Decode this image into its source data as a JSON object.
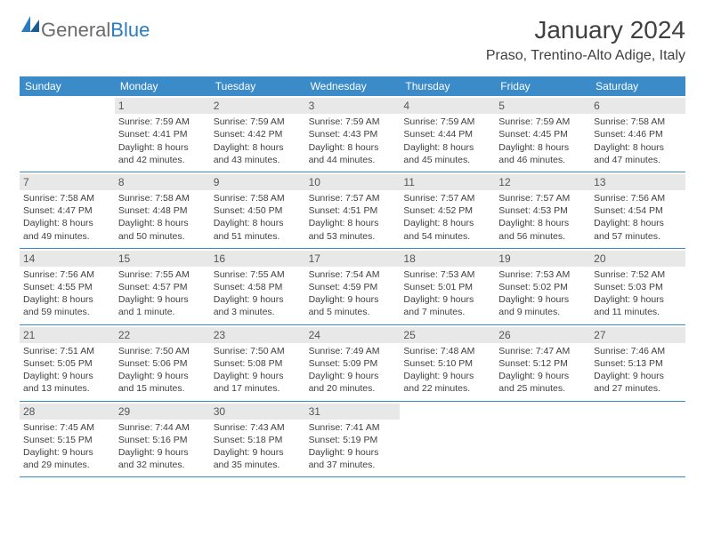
{
  "logo": {
    "text1": "General",
    "text2": "Blue"
  },
  "title": "January 2024",
  "location": "Praso, Trentino-Alto Adige, Italy",
  "colors": {
    "header_bg": "#3b8bc9",
    "header_text": "#ffffff",
    "daynum_bg": "#e8e8e8",
    "daynum_text": "#555555",
    "body_text": "#404040",
    "border": "#3b8bc9",
    "logo_gray": "#6b6b6b",
    "logo_blue": "#2b7bbf",
    "background": "#ffffff"
  },
  "weekdays": [
    "Sunday",
    "Monday",
    "Tuesday",
    "Wednesday",
    "Thursday",
    "Friday",
    "Saturday"
  ],
  "weeks": [
    [
      {
        "empty": true
      },
      {
        "n": "1",
        "sr": "7:59 AM",
        "ss": "4:41 PM",
        "dl": "8 hours and 42 minutes."
      },
      {
        "n": "2",
        "sr": "7:59 AM",
        "ss": "4:42 PM",
        "dl": "8 hours and 43 minutes."
      },
      {
        "n": "3",
        "sr": "7:59 AM",
        "ss": "4:43 PM",
        "dl": "8 hours and 44 minutes."
      },
      {
        "n": "4",
        "sr": "7:59 AM",
        "ss": "4:44 PM",
        "dl": "8 hours and 45 minutes."
      },
      {
        "n": "5",
        "sr": "7:59 AM",
        "ss": "4:45 PM",
        "dl": "8 hours and 46 minutes."
      },
      {
        "n": "6",
        "sr": "7:58 AM",
        "ss": "4:46 PM",
        "dl": "8 hours and 47 minutes."
      }
    ],
    [
      {
        "n": "7",
        "sr": "7:58 AM",
        "ss": "4:47 PM",
        "dl": "8 hours and 49 minutes."
      },
      {
        "n": "8",
        "sr": "7:58 AM",
        "ss": "4:48 PM",
        "dl": "8 hours and 50 minutes."
      },
      {
        "n": "9",
        "sr": "7:58 AM",
        "ss": "4:50 PM",
        "dl": "8 hours and 51 minutes."
      },
      {
        "n": "10",
        "sr": "7:57 AM",
        "ss": "4:51 PM",
        "dl": "8 hours and 53 minutes."
      },
      {
        "n": "11",
        "sr": "7:57 AM",
        "ss": "4:52 PM",
        "dl": "8 hours and 54 minutes."
      },
      {
        "n": "12",
        "sr": "7:57 AM",
        "ss": "4:53 PM",
        "dl": "8 hours and 56 minutes."
      },
      {
        "n": "13",
        "sr": "7:56 AM",
        "ss": "4:54 PM",
        "dl": "8 hours and 57 minutes."
      }
    ],
    [
      {
        "n": "14",
        "sr": "7:56 AM",
        "ss": "4:55 PM",
        "dl": "8 hours and 59 minutes."
      },
      {
        "n": "15",
        "sr": "7:55 AM",
        "ss": "4:57 PM",
        "dl": "9 hours and 1 minute."
      },
      {
        "n": "16",
        "sr": "7:55 AM",
        "ss": "4:58 PM",
        "dl": "9 hours and 3 minutes."
      },
      {
        "n": "17",
        "sr": "7:54 AM",
        "ss": "4:59 PM",
        "dl": "9 hours and 5 minutes."
      },
      {
        "n": "18",
        "sr": "7:53 AM",
        "ss": "5:01 PM",
        "dl": "9 hours and 7 minutes."
      },
      {
        "n": "19",
        "sr": "7:53 AM",
        "ss": "5:02 PM",
        "dl": "9 hours and 9 minutes."
      },
      {
        "n": "20",
        "sr": "7:52 AM",
        "ss": "5:03 PM",
        "dl": "9 hours and 11 minutes."
      }
    ],
    [
      {
        "n": "21",
        "sr": "7:51 AM",
        "ss": "5:05 PM",
        "dl": "9 hours and 13 minutes."
      },
      {
        "n": "22",
        "sr": "7:50 AM",
        "ss": "5:06 PM",
        "dl": "9 hours and 15 minutes."
      },
      {
        "n": "23",
        "sr": "7:50 AM",
        "ss": "5:08 PM",
        "dl": "9 hours and 17 minutes."
      },
      {
        "n": "24",
        "sr": "7:49 AM",
        "ss": "5:09 PM",
        "dl": "9 hours and 20 minutes."
      },
      {
        "n": "25",
        "sr": "7:48 AM",
        "ss": "5:10 PM",
        "dl": "9 hours and 22 minutes."
      },
      {
        "n": "26",
        "sr": "7:47 AM",
        "ss": "5:12 PM",
        "dl": "9 hours and 25 minutes."
      },
      {
        "n": "27",
        "sr": "7:46 AM",
        "ss": "5:13 PM",
        "dl": "9 hours and 27 minutes."
      }
    ],
    [
      {
        "n": "28",
        "sr": "7:45 AM",
        "ss": "5:15 PM",
        "dl": "9 hours and 29 minutes."
      },
      {
        "n": "29",
        "sr": "7:44 AM",
        "ss": "5:16 PM",
        "dl": "9 hours and 32 minutes."
      },
      {
        "n": "30",
        "sr": "7:43 AM",
        "ss": "5:18 PM",
        "dl": "9 hours and 35 minutes."
      },
      {
        "n": "31",
        "sr": "7:41 AM",
        "ss": "5:19 PM",
        "dl": "9 hours and 37 minutes."
      },
      {
        "empty": true
      },
      {
        "empty": true
      },
      {
        "empty": true
      }
    ]
  ],
  "labels": {
    "sunrise": "Sunrise:",
    "sunset": "Sunset:",
    "daylight": "Daylight:"
  }
}
